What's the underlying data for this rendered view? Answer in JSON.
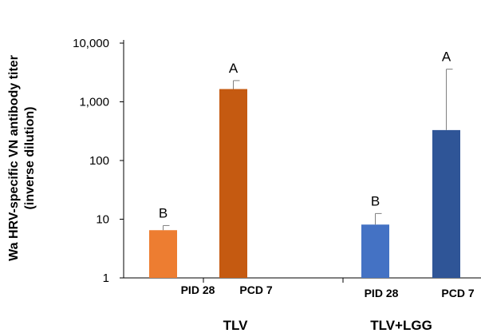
{
  "chart_data": {
    "type": "bar",
    "yscale": "log",
    "ylim": [
      1,
      10000
    ],
    "yticks": [
      "1",
      "10",
      "100",
      "1,000",
      "10,000"
    ],
    "ytick_values": [
      1,
      10,
      100,
      1000,
      10000
    ],
    "ylabel_line1": "Wa HRV-specific VN antibody titer",
    "ylabel_line2": "(inverse dilution)",
    "groups": [
      {
        "name": "TLV",
        "bars": [
          {
            "label": "PID 28",
            "value": 6.5,
            "error_upper": 7.8,
            "sig": "B",
            "color": "#ED7D31"
          },
          {
            "label": "PCD 7",
            "value": 1650,
            "error_upper": 2300,
            "sig": "A",
            "color": "#C55A11"
          }
        ]
      },
      {
        "name": "TLV+LGG",
        "bars": [
          {
            "label": "PID 28",
            "value": 8.1,
            "error_upper": 12.5,
            "sig": "B",
            "color": "#4472C4"
          },
          {
            "label": "PCD 7",
            "value": 330,
            "error_upper": 3600,
            "sig": "A",
            "color": "#2F5597"
          }
        ]
      }
    ],
    "grid": false,
    "legend": "none"
  }
}
